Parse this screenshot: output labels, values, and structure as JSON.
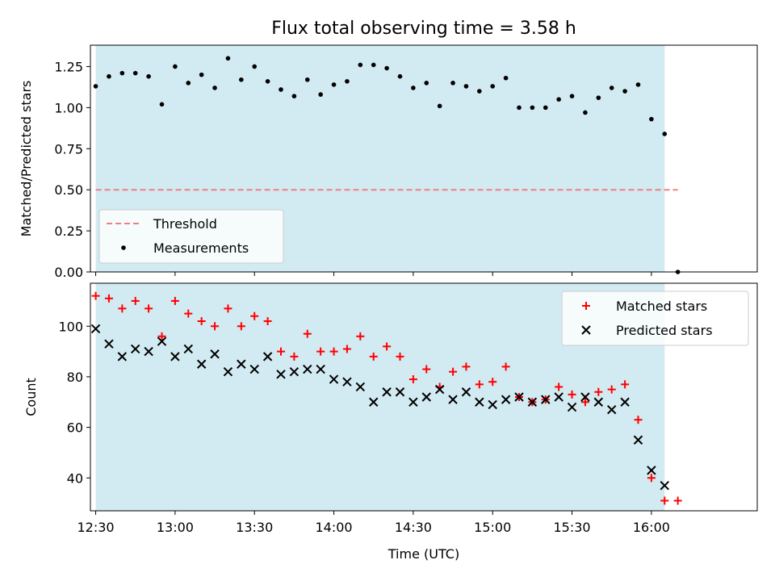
{
  "chart_data": [
    {
      "type": "scatter",
      "title": "Flux total observing time = 3.58 h",
      "xlabel": "",
      "ylabel": "Matched/Predicted stars",
      "ylim": [
        0,
        1.38
      ],
      "yticks": [
        "0.00",
        "0.25",
        "0.50",
        "0.75",
        "1.00",
        "1.25"
      ],
      "threshold": {
        "name": "Threshold",
        "value": 0.5,
        "color": "#f08080",
        "style": "dashed"
      },
      "series": [
        {
          "name": "Measurements",
          "color": "#000000",
          "x": [
            "12:30",
            "12:35",
            "12:40",
            "12:45",
            "12:50",
            "12:55",
            "13:00",
            "13:05",
            "13:10",
            "13:15",
            "13:20",
            "13:25",
            "13:30",
            "13:35",
            "13:40",
            "13:45",
            "13:50",
            "13:55",
            "14:00",
            "14:05",
            "14:10",
            "14:15",
            "14:20",
            "14:25",
            "14:30",
            "14:35",
            "14:40",
            "14:45",
            "14:50",
            "14:55",
            "15:00",
            "15:05",
            "15:10",
            "15:15",
            "15:20",
            "15:25",
            "15:30",
            "15:35",
            "15:40",
            "15:45",
            "15:50",
            "15:55",
            "16:00",
            "16:05",
            "16:10"
          ],
          "values": [
            1.13,
            1.19,
            1.21,
            1.21,
            1.19,
            1.02,
            1.25,
            1.15,
            1.2,
            1.12,
            1.3,
            1.17,
            1.25,
            1.16,
            1.11,
            1.07,
            1.17,
            1.08,
            1.14,
            1.16,
            1.26,
            1.26,
            1.24,
            1.19,
            1.12,
            1.15,
            1.01,
            1.15,
            1.13,
            1.1,
            1.13,
            1.18,
            1.0,
            1.0,
            1.0,
            1.05,
            1.07,
            0.97,
            1.06,
            1.12,
            1.1,
            1.14,
            0.93,
            0.84,
            0.0
          ]
        }
      ],
      "legend": "lower-left",
      "grid": false
    },
    {
      "type": "scatter",
      "title": "",
      "xlabel": "Time (UTC)",
      "ylabel": "Count",
      "ylim": [
        27,
        117
      ],
      "yticks": [
        "40",
        "60",
        "80",
        "100"
      ],
      "xlim": [
        "12:28",
        "16:40"
      ],
      "xticks": [
        "12:30",
        "13:00",
        "13:30",
        "14:00",
        "14:30",
        "15:00",
        "15:30",
        "16:00"
      ],
      "series": [
        {
          "name": "Matched stars",
          "color": "#ff0000",
          "marker": "plus",
          "x": [
            "12:30",
            "12:35",
            "12:40",
            "12:45",
            "12:50",
            "12:55",
            "13:00",
            "13:05",
            "13:10",
            "13:15",
            "13:20",
            "13:25",
            "13:30",
            "13:35",
            "13:40",
            "13:45",
            "13:50",
            "13:55",
            "14:00",
            "14:05",
            "14:10",
            "14:15",
            "14:20",
            "14:25",
            "14:30",
            "14:35",
            "14:40",
            "14:45",
            "14:50",
            "14:55",
            "15:00",
            "15:05",
            "15:10",
            "15:15",
            "15:20",
            "15:25",
            "15:30",
            "15:35",
            "15:40",
            "15:45",
            "15:50",
            "15:55",
            "16:00",
            "16:05",
            "16:10"
          ],
          "values": [
            112,
            111,
            107,
            110,
            107,
            96,
            110,
            105,
            102,
            100,
            107,
            100,
            104,
            102,
            90,
            88,
            97,
            90,
            90,
            91,
            96,
            88,
            92,
            88,
            79,
            83,
            76,
            82,
            84,
            77,
            78,
            84,
            72,
            70,
            71,
            76,
            73,
            70,
            74,
            75,
            77,
            63,
            40,
            31,
            31
          ]
        },
        {
          "name": "Predicted stars",
          "color": "#000000",
          "marker": "x",
          "x": [
            "12:30",
            "12:35",
            "12:40",
            "12:45",
            "12:50",
            "12:55",
            "13:00",
            "13:05",
            "13:10",
            "13:15",
            "13:20",
            "13:25",
            "13:30",
            "13:35",
            "13:40",
            "13:45",
            "13:50",
            "13:55",
            "14:00",
            "14:05",
            "14:10",
            "14:15",
            "14:20",
            "14:25",
            "14:30",
            "14:35",
            "14:40",
            "14:45",
            "14:50",
            "14:55",
            "15:00",
            "15:05",
            "15:10",
            "15:15",
            "15:20",
            "15:25",
            "15:30",
            "15:35",
            "15:40",
            "15:45",
            "15:50",
            "15:55",
            "16:00",
            "16:05"
          ],
          "values": [
            99,
            93,
            88,
            91,
            90,
            94,
            88,
            91,
            85,
            89,
            82,
            85,
            83,
            88,
            81,
            82,
            83,
            83,
            79,
            78,
            76,
            70,
            74,
            74,
            70,
            72,
            75,
            71,
            74,
            70,
            69,
            71,
            72,
            70,
            71,
            72,
            68,
            72,
            70,
            67,
            70,
            55,
            43,
            37
          ]
        }
      ],
      "legend": "upper-right",
      "grid": false
    }
  ],
  "observing_window": {
    "start": "12:30",
    "end": "16:05",
    "color": "#add8e6"
  }
}
